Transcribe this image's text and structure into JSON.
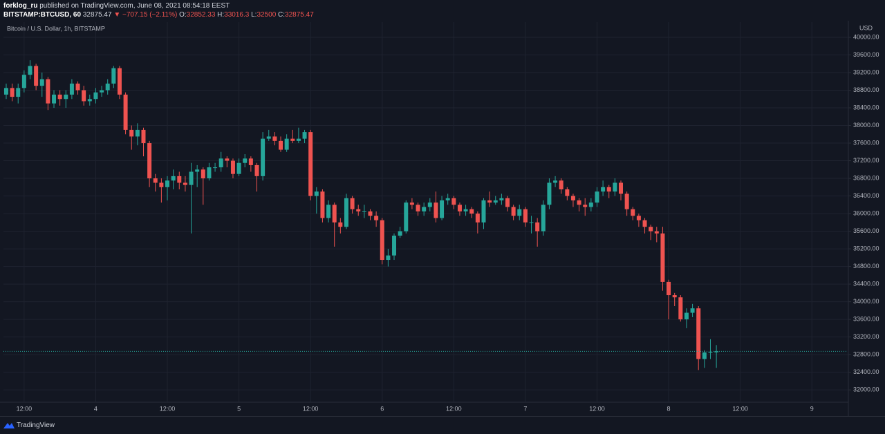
{
  "header": {
    "author": "forklog_ru",
    "byline": "published on TradingView.com, June 08, 2021 08:54:18 EEST",
    "symbol": "BITSTAMP:BTCUSD, 60",
    "change": "▼ −707.15 (−2.11%)",
    "open_label": "O:",
    "high_label": "H:",
    "low_label": "L:",
    "close_label": "C:"
  },
  "footer": {
    "brand": "TradingView"
  },
  "chart_data": {
    "type": "candlestick",
    "title": "Bitcoin / U.S. Dollar, 1h, BITSTAMP",
    "y_unit": "USD",
    "up_color": "#26a69a",
    "down_color": "#ef5350",
    "grid": true,
    "last_price_line": true,
    "ylim": [
      31720,
      40345
    ],
    "yticks": [
      {
        "value": 32000,
        "label": "32000.00"
      },
      {
        "value": 32400,
        "label": "32400.00"
      },
      {
        "value": 32800,
        "label": "32800.00"
      },
      {
        "value": 33200,
        "label": "33200.00"
      },
      {
        "value": 33600,
        "label": "33600.00"
      },
      {
        "value": 34000,
        "label": "34000.00"
      },
      {
        "value": 34400,
        "label": "34400.00"
      },
      {
        "value": 34800,
        "label": "34800.00"
      },
      {
        "value": 35200,
        "label": "35200.00"
      },
      {
        "value": 35600,
        "label": "35600.00"
      },
      {
        "value": 36000,
        "label": "36000.00"
      },
      {
        "value": 36400,
        "label": "36400.00"
      },
      {
        "value": 36800,
        "label": "36800.00"
      },
      {
        "value": 37200,
        "label": "37200.00"
      },
      {
        "value": 37600,
        "label": "37600.00"
      },
      {
        "value": 38000,
        "label": "38000.00"
      },
      {
        "value": 38400,
        "label": "38400.00"
      },
      {
        "value": 38800,
        "label": "38800.00"
      },
      {
        "value": 39200,
        "label": "39200.00"
      },
      {
        "value": 39600,
        "label": "39600.00"
      },
      {
        "value": 40000,
        "label": "40000.00"
      }
    ],
    "xlim": [
      -0.46,
      141
    ],
    "xticks": [
      {
        "value": 3,
        "label": "12:00"
      },
      {
        "value": 15,
        "label": "4"
      },
      {
        "value": 27,
        "label": "12:00"
      },
      {
        "value": 39,
        "label": "5"
      },
      {
        "value": 51,
        "label": "12:00"
      },
      {
        "value": 63,
        "label": "6"
      },
      {
        "value": 75,
        "label": "12:00"
      },
      {
        "value": 87,
        "label": "7"
      },
      {
        "value": 99,
        "label": "12:00"
      },
      {
        "value": 111,
        "label": "8"
      },
      {
        "value": 123,
        "label": "12:00"
      },
      {
        "value": 135,
        "label": "9"
      }
    ],
    "open": [
      38700,
      38850,
      38650,
      38850,
      39150,
      39350,
      38900,
      39050,
      38500,
      38700,
      38600,
      38700,
      38950,
      38800,
      38550,
      38600,
      38750,
      38800,
      38950,
      39300,
      38700,
      37900,
      37750,
      37900,
      37600,
      36800,
      36700,
      36600,
      36750,
      36850,
      36700,
      36650,
      36950,
      37000,
      36800,
      37050,
      37050,
      37250,
      37200,
      36900,
      37150,
      37250,
      37100,
      36850,
      37700,
      37750,
      37650,
      37450,
      37700,
      37650,
      37700,
      37850,
      36400,
      36500,
      35900,
      36200,
      35800,
      35700,
      36350,
      36100,
      36050,
      36050,
      35950,
      35850,
      34950,
      35050,
      35500,
      35600,
      36250,
      36200,
      36050,
      36150,
      36250,
      35900,
      36300,
      36350,
      36200,
      36050,
      36100,
      36000,
      35800,
      36300,
      36250,
      36300,
      36350,
      36150,
      35950,
      36100,
      35800,
      35800,
      35600,
      36200,
      36700,
      36750,
      36550,
      36400,
      36300,
      36200,
      36150,
      36250,
      36500,
      36600,
      36500,
      36700,
      36450,
      36100,
      35950,
      35850,
      35700,
      35600,
      35550,
      34450,
      34150,
      34100,
      33600,
      33750,
      33850,
      32700,
      32850,
      32852.33
    ],
    "high": [
      38950,
      38950,
      38950,
      39250,
      39480,
      39400,
      39200,
      39100,
      38800,
      38800,
      38800,
      39050,
      39000,
      38900,
      38700,
      38850,
      38900,
      39050,
      39350,
      39350,
      38750,
      38000,
      38050,
      37950,
      37650,
      36900,
      36800,
      36850,
      37000,
      36950,
      36850,
      37150,
      37100,
      37050,
      37150,
      37150,
      37400,
      37300,
      37250,
      37250,
      37350,
      37300,
      37150,
      37850,
      37900,
      37850,
      37750,
      37800,
      37900,
      37950,
      37900,
      37900,
      36600,
      36550,
      36300,
      36250,
      35900,
      36450,
      36400,
      36200,
      36200,
      36100,
      36050,
      35900,
      35200,
      35550,
      35700,
      36300,
      36350,
      36250,
      36250,
      36350,
      36500,
      36400,
      36450,
      36400,
      36250,
      36200,
      36150,
      36050,
      36350,
      36500,
      36400,
      36450,
      36400,
      36200,
      36200,
      36150,
      35950,
      35900,
      36300,
      36800,
      36850,
      36800,
      36600,
      36450,
      36350,
      36350,
      36350,
      36600,
      36750,
      36650,
      36800,
      36750,
      36500,
      36150,
      36000,
      35900,
      35750,
      35700,
      35700,
      34500,
      34200,
      34150,
      33850,
      33950,
      33900,
      32900,
      33150,
      33016.3
    ],
    "low": [
      38600,
      38550,
      38500,
      38750,
      39050,
      38800,
      38650,
      38350,
      38400,
      38450,
      38400,
      38600,
      38700,
      38450,
      38450,
      38500,
      38650,
      38700,
      38850,
      38600,
      37800,
      37450,
      37550,
      37300,
      36600,
      36500,
      36250,
      36300,
      36550,
      36550,
      36500,
      35550,
      36600,
      36200,
      36750,
      36950,
      36950,
      37050,
      36800,
      36850,
      37050,
      36950,
      36500,
      36750,
      37650,
      37550,
      37400,
      37400,
      37600,
      37600,
      37600,
      36300,
      36000,
      35800,
      35800,
      35250,
      35550,
      35650,
      36000,
      35950,
      35900,
      35850,
      35700,
      34850,
      34800,
      34950,
      35450,
      35550,
      36100,
      35950,
      35950,
      36050,
      35800,
      35850,
      36200,
      36100,
      35950,
      35950,
      35900,
      35550,
      35650,
      36150,
      36200,
      36200,
      36050,
      35850,
      35850,
      35700,
      35550,
      35250,
      35500,
      36100,
      36600,
      36450,
      36300,
      36150,
      36050,
      35950,
      36050,
      36150,
      36400,
      36350,
      36400,
      36300,
      35950,
      35850,
      35700,
      35550,
      35400,
      35350,
      34250,
      33600,
      33900,
      33550,
      33400,
      33650,
      32450,
      32500,
      32700,
      32500
    ],
    "close": [
      38850,
      38650,
      38850,
      39150,
      39350,
      38900,
      39050,
      38500,
      38700,
      38600,
      38700,
      38950,
      38800,
      38550,
      38600,
      38750,
      38800,
      38950,
      39300,
      38700,
      37900,
      37750,
      37900,
      37600,
      36800,
      36700,
      36600,
      36750,
      36850,
      36700,
      36650,
      36950,
      37000,
      36800,
      37050,
      37050,
      37250,
      37200,
      36900,
      37150,
      37250,
      37100,
      36850,
      37700,
      37750,
      37650,
      37450,
      37700,
      37650,
      37700,
      37850,
      36400,
      36500,
      35900,
      36200,
      35800,
      35700,
      36350,
      36100,
      36050,
      36050,
      35950,
      35850,
      34950,
      35050,
      35500,
      35600,
      36250,
      36200,
      36050,
      36150,
      36250,
      35900,
      36300,
      36350,
      36200,
      36050,
      36100,
      36000,
      35800,
      36300,
      36250,
      36300,
      36350,
      36150,
      35950,
      36100,
      35800,
      35800,
      35600,
      36200,
      36700,
      36750,
      36550,
      36400,
      36300,
      36200,
      36150,
      36250,
      36500,
      36600,
      36500,
      36700,
      36450,
      36100,
      35950,
      35850,
      35700,
      35600,
      35550,
      34450,
      34150,
      34100,
      33600,
      33750,
      33850,
      32700,
      32850,
      32850,
      32875.47
    ]
  }
}
